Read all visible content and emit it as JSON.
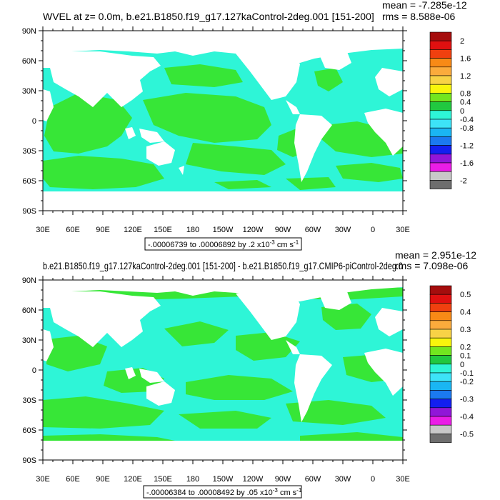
{
  "panels": [
    {
      "title": "WVEL at z=   0.0m, b.e21.B1850.f19_g17.127kaControl-2deg.001 [151-200]",
      "mean": "mean = -7.285e-12",
      "rms": "rms = 8.588e-06",
      "range_label": "-.00006739 to .00006892 by .2 x10",
      "range_exp": "-3",
      "range_unit": " cm s",
      "range_unit_exp": "-1",
      "colorbar_labels": [
        "2",
        "1.6",
        "1.2",
        "0.8",
        "0.4",
        "0",
        "-0.4",
        "-0.8",
        "-1.2",
        "-1.6",
        "-2"
      ]
    },
    {
      "title": "b.e21.B1850.f19_g17.127kaControl-2deg.001 [151-200] - b.e21.B1850.f19_g17.CMIP6-piControl-2deg.0",
      "mean": "mean = 2.951e-12",
      "rms": "rms = 7.098e-06",
      "range_label": "-.00006384 to .00008492 by .05 x10",
      "range_exp": "-3",
      "range_unit": " cm s",
      "range_unit_exp": "-1",
      "colorbar_labels": [
        "0.5",
        "0.4",
        "0.3",
        "0.2",
        "0.1",
        "0",
        "-0.1",
        "-0.2",
        "-0.3",
        "-0.4",
        "-0.5"
      ]
    }
  ],
  "lat_labels": [
    "90N",
    "60N",
    "30N",
    "0",
    "30S",
    "60S",
    "90S"
  ],
  "lon_labels": [
    "30E",
    "60E",
    "90E",
    "120E",
    "150E",
    "180",
    "150W",
    "120W",
    "90W",
    "60W",
    "30W",
    "0",
    "30E"
  ],
  "colors": {
    "positive_small": "#37e637",
    "negative_small": "#2ef5d7",
    "land": "#ffffff",
    "colorbar": [
      "#a50d0d",
      "#e01010",
      "#f0400f",
      "#f88a16",
      "#fbab3c",
      "#f8d246",
      "#f8f50c",
      "#72e61f",
      "#21c840",
      "#2ef5d7",
      "#3de3f7",
      "#1ab6f3",
      "#1b79f0",
      "#131ff0",
      "#9116d8",
      "#ea1de6",
      "#c8c8c8",
      "#6e6e6e"
    ]
  }
}
